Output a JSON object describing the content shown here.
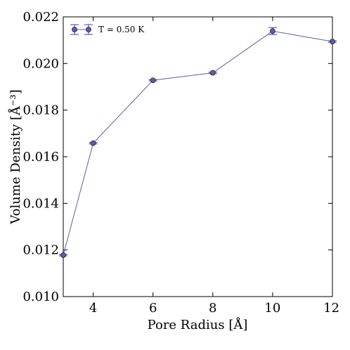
{
  "chart_data": {
    "type": "line",
    "xlabel": "Pore Radius [Å]",
    "ylabel": "Volume Density [Å⁻³]",
    "xlim": [
      3,
      12
    ],
    "ylim": [
      0.01,
      0.022
    ],
    "x_ticks": [
      "4",
      "6",
      "8",
      "10",
      "12"
    ],
    "y_ticks": [
      "0.010",
      "0.012",
      "0.014",
      "0.016",
      "0.018",
      "0.020",
      "0.022"
    ],
    "grid": false,
    "legend_position": "top-left",
    "series": [
      {
        "name": "T = 0.50 K",
        "color": "#5b5ea6",
        "marker": "circle",
        "x": [
          3,
          4,
          6,
          8,
          10,
          12
        ],
        "y": [
          0.01178,
          0.01658,
          0.01928,
          0.0196,
          0.02139,
          0.02094
        ],
        "yerr": [
          3e-05,
          3e-05,
          3e-05,
          3e-05,
          0.00015,
          3e-05
        ]
      }
    ]
  }
}
